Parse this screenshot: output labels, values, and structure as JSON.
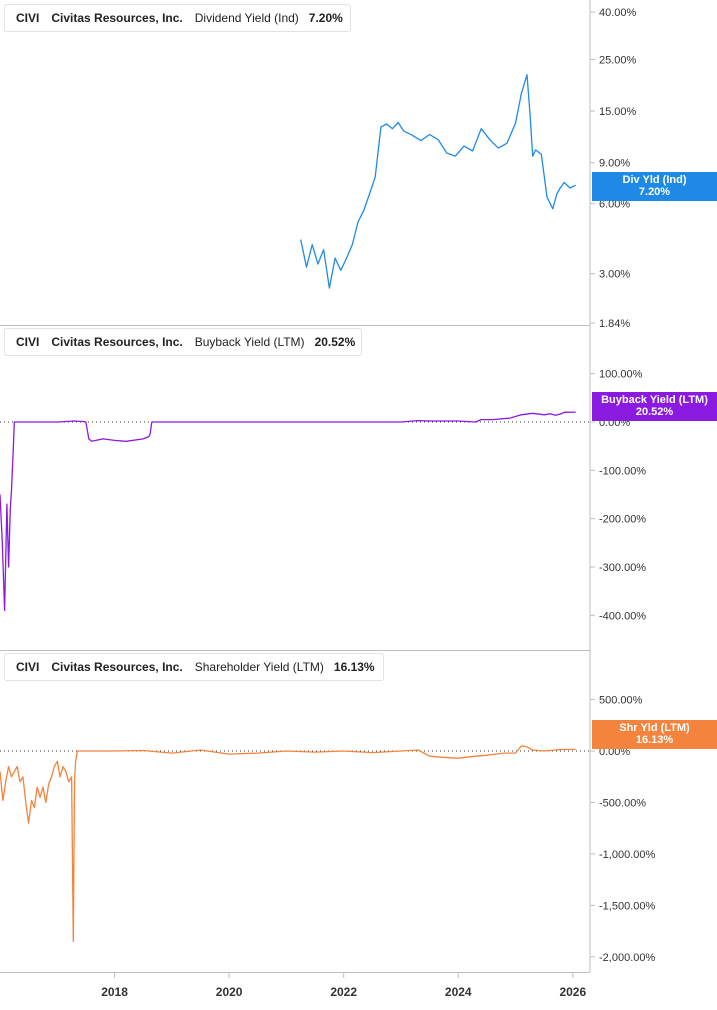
{
  "colors": {
    "panel1": "#1f8ae6",
    "panel2": "#8b1ae0",
    "panel3": "#f4833d",
    "axis": "#bfbfbf",
    "zero_line": "#333333"
  },
  "x_axis": {
    "ticks": [
      "2018",
      "2020",
      "2022",
      "2024",
      "2026"
    ],
    "range": [
      2016.0,
      2026.3
    ]
  },
  "panels": [
    {
      "ticker": "CIVI",
      "company": "Civitas Resources, Inc.",
      "metric": "Dividend Yield (Ind)",
      "value": "7.20%",
      "badge_label": "Div Yld (Ind)",
      "badge_value": "7.20%"
    },
    {
      "ticker": "CIVI",
      "company": "Civitas Resources, Inc.",
      "metric": "Buyback Yield (LTM)",
      "value": "20.52%",
      "badge_label": "Buyback Yield (LTM)",
      "badge_value": "20.52%"
    },
    {
      "ticker": "CIVI",
      "company": "Civitas Resources, Inc.",
      "metric": "Shareholder Yield (LTM)",
      "value": "16.13%",
      "badge_label": "Shr Yld (LTM)",
      "badge_value": "16.13%"
    }
  ],
  "chart_data": [
    {
      "type": "line",
      "title": "CIVI Civitas Resources, Inc. Dividend Yield (Ind) 7.20%",
      "scale": "log",
      "ylim": [
        1.84,
        40
      ],
      "y_ticks": [
        {
          "v": 40,
          "label": "40.00%"
        },
        {
          "v": 25,
          "label": "25.00%"
        },
        {
          "v": 15,
          "label": "15.00%"
        },
        {
          "v": 9,
          "label": "9.00%"
        },
        {
          "v": 6,
          "label": "6.00%"
        },
        {
          "v": 3,
          "label": "3.00%"
        },
        {
          "v": 1.84,
          "label": "1.84%"
        }
      ],
      "series": [
        {
          "name": "Div Yld (Ind)",
          "x": [
            2021.25,
            2021.35,
            2021.45,
            2021.55,
            2021.65,
            2021.75,
            2021.85,
            2021.95,
            2022.05,
            2022.15,
            2022.25,
            2022.35,
            2022.45,
            2022.55,
            2022.65,
            2022.75,
            2022.85,
            2022.95,
            2023.05,
            2023.2,
            2023.35,
            2023.5,
            2023.65,
            2023.8,
            2023.95,
            2024.1,
            2024.25,
            2024.4,
            2024.55,
            2024.7,
            2024.85,
            2025.0,
            2025.1,
            2025.2,
            2025.25,
            2025.3,
            2025.35,
            2025.45,
            2025.55,
            2025.65,
            2025.72,
            2025.78,
            2025.85,
            2025.95,
            2026.05
          ],
          "y": [
            4.2,
            3.2,
            4.0,
            3.3,
            3.8,
            2.6,
            3.5,
            3.1,
            3.5,
            4.0,
            5.0,
            5.6,
            6.6,
            7.8,
            12.8,
            13.2,
            12.6,
            13.4,
            12.3,
            11.8,
            11.2,
            11.9,
            11.3,
            9.9,
            9.6,
            10.6,
            10.1,
            12.6,
            11.3,
            10.4,
            10.9,
            13.3,
            17.8,
            21.5,
            14.8,
            9.6,
            10.2,
            9.8,
            6.4,
            5.7,
            6.6,
            7.0,
            7.4,
            7.0,
            7.2
          ]
        }
      ]
    },
    {
      "type": "line",
      "title": "CIVI Civitas Resources, Inc. Buyback Yield (LTM) 20.52%",
      "ylim": [
        -420,
        120
      ],
      "y_ticks": [
        {
          "v": 100,
          "label": "100.00%"
        },
        {
          "v": 0,
          "label": "0.00%"
        },
        {
          "v": -100,
          "label": "-100.00%"
        },
        {
          "v": -200,
          "label": "-200.00%"
        },
        {
          "v": -300,
          "label": "-300.00%"
        },
        {
          "v": -400,
          "label": "-400.00%"
        }
      ],
      "series": [
        {
          "name": "Buyback Yield (LTM)",
          "x": [
            2016.0,
            2016.04,
            2016.08,
            2016.12,
            2016.15,
            2016.18,
            2016.2,
            2016.23,
            2016.25,
            2016.3,
            2016.5,
            2017.0,
            2017.3,
            2017.45,
            2017.5,
            2017.55,
            2017.6,
            2017.8,
            2018.0,
            2018.2,
            2018.5,
            2018.6,
            2018.62,
            2018.65,
            2019.0,
            2020.0,
            2021.0,
            2022.0,
            2023.0,
            2023.3,
            2023.5,
            2024.0,
            2024.3,
            2024.4,
            2024.6,
            2024.9,
            2025.1,
            2025.3,
            2025.5,
            2025.6,
            2025.7,
            2025.8,
            2025.85,
            2026.05
          ],
          "y": [
            -150,
            -250,
            -390,
            -170,
            -300,
            -180,
            -140,
            -60,
            0,
            0,
            0,
            0,
            2,
            1,
            0,
            -35,
            -40,
            -35,
            -38,
            -40,
            -35,
            -30,
            -25,
            0,
            0,
            0,
            0,
            0,
            0,
            3,
            2,
            2,
            0,
            5,
            5,
            8,
            15,
            18,
            15,
            17,
            14,
            17,
            20,
            20.52
          ]
        }
      ]
    },
    {
      "type": "line",
      "title": "CIVI Civitas Resources, Inc. Shareholder Yield (LTM) 16.13%",
      "ylim": [
        -2050,
        700
      ],
      "y_ticks": [
        {
          "v": 500,
          "label": "500.00%"
        },
        {
          "v": 0,
          "label": "0.00%"
        },
        {
          "v": -500,
          "label": "-500.00%"
        },
        {
          "v": -1000,
          "label": "-1,000.00%"
        },
        {
          "v": -1500,
          "label": "-1,500.00%"
        },
        {
          "v": -2000,
          "label": "-2,000.00%"
        }
      ],
      "series": [
        {
          "name": "Shr Yld (LTM)",
          "x": [
            2016.0,
            2016.05,
            2016.1,
            2016.15,
            2016.2,
            2016.25,
            2016.3,
            2016.35,
            2016.4,
            2016.45,
            2016.5,
            2016.55,
            2016.6,
            2016.65,
            2016.7,
            2016.75,
            2016.8,
            2016.85,
            2016.9,
            2016.95,
            2017.0,
            2017.05,
            2017.1,
            2017.15,
            2017.2,
            2017.25,
            2017.28,
            2017.3,
            2017.32,
            2017.35,
            2017.5,
            2018.0,
            2018.5,
            2019.0,
            2019.5,
            2020.0,
            2020.5,
            2021.0,
            2021.5,
            2022.0,
            2022.5,
            2023.0,
            2023.3,
            2023.5,
            2023.7,
            2024.0,
            2024.3,
            2024.5,
            2024.8,
            2025.0,
            2025.1,
            2025.2,
            2025.3,
            2025.5,
            2025.8,
            2026.05
          ],
          "y": [
            -200,
            -480,
            -300,
            -150,
            -250,
            -200,
            -150,
            -300,
            -250,
            -500,
            -700,
            -480,
            -550,
            -350,
            -450,
            -350,
            -500,
            -320,
            -250,
            -150,
            -100,
            -250,
            -150,
            -200,
            -300,
            -250,
            -1850,
            -300,
            -100,
            0,
            0,
            0,
            5,
            -20,
            10,
            -30,
            -20,
            0,
            -10,
            0,
            -15,
            0,
            10,
            -50,
            -60,
            -70,
            -50,
            -40,
            -20,
            -20,
            50,
            40,
            10,
            0,
            15,
            16.13
          ]
        }
      ]
    }
  ]
}
